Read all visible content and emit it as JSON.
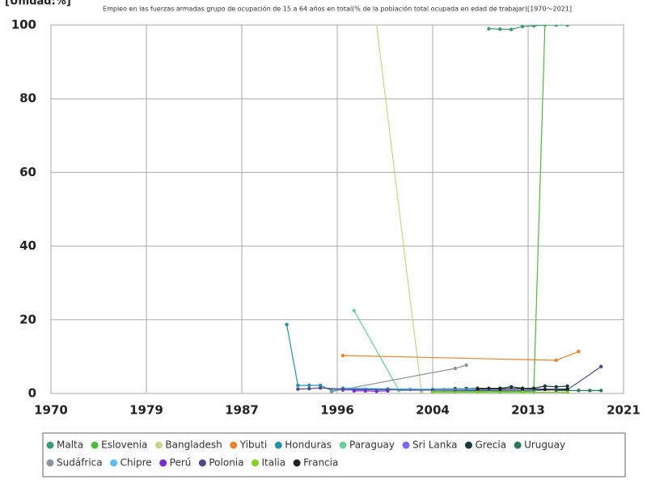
{
  "chart_data": {
    "type": "line",
    "title": "Empleo en las fuerzas armadas grupo de ocupación de 15 a 64 años en total(% de la población total ocupada en edad de trabajar)[1970～2021]",
    "unit_label": "[Unidad:%]",
    "xlim": [
      1970,
      2021
    ],
    "xticks": [
      1970,
      {
        "value": 1978.5,
        "label": "1979"
      },
      1987,
      {
        "value": 1995.5,
        "label": "1996"
      },
      2004,
      {
        "value": 2012.5,
        "label": "2013"
      },
      2021
    ],
    "ylim": [
      0,
      100
    ],
    "yticks": [
      0,
      20,
      40,
      60,
      80,
      100
    ],
    "grid": true,
    "series": [
      {
        "name": "Malta",
        "color": "#3a9a7a",
        "x": [
          2009,
          2010,
          2011,
          2012,
          2013,
          2014,
          2015,
          2016
        ],
        "values": [
          99,
          98.9,
          98.8,
          99.6,
          99.8,
          100,
          100,
          100
        ]
      },
      {
        "name": "Eslovenia",
        "color": "#4cbb3c",
        "x": [
          2004,
          2006,
          2008,
          2010,
          2012,
          2013,
          2014
        ],
        "values": [
          0.5,
          0.5,
          0.5,
          0.5,
          0.5,
          0.5,
          100
        ]
      },
      {
        "name": "Bangladesh",
        "color": "#c8d48a",
        "x": [
          1998,
          2003
        ],
        "values": [
          125,
          0.5
        ]
      },
      {
        "name": "Yibuti",
        "color": "#e8832a",
        "x": [
          1996,
          2015,
          2017
        ],
        "values": [
          10.3,
          9,
          11.4
        ]
      },
      {
        "name": "Honduras",
        "color": "#2a8fa8",
        "x": [
          1991,
          1992,
          1993,
          1994,
          1995,
          1996,
          1998,
          2000,
          2002,
          2004
        ],
        "values": [
          18.7,
          2.2,
          2.2,
          2.2,
          0.8,
          1.3,
          1.2,
          1.2,
          1.1,
          1.1
        ]
      },
      {
        "name": "Paraguay",
        "color": "#6ccf9a",
        "x": [
          1997,
          2001,
          2003,
          2005,
          2007,
          2009
        ],
        "values": [
          22.5,
          0.8,
          0.9,
          1.1,
          0.9,
          0.8
        ]
      },
      {
        "name": "Sri Lanka",
        "color": "#7b68ee",
        "x": [
          1996,
          1998,
          2000,
          2002,
          2004,
          2006,
          2008
        ],
        "values": [
          0.9,
          1,
          1,
          1.1,
          1,
          1.1,
          1
        ]
      },
      {
        "name": "Grecia",
        "color": "#17383a",
        "x": [
          2004,
          2006,
          2007,
          2008,
          2009,
          2010,
          2011,
          2012,
          2013,
          2014,
          2015,
          2016
        ],
        "values": [
          1.2,
          1.3,
          1.3,
          1.4,
          1.4,
          1.4,
          1.8,
          1.4,
          1.4,
          2,
          1.8,
          2
        ]
      },
      {
        "name": "Uruguay",
        "color": "#2a7a5a",
        "x": [
          2015,
          2016,
          2017,
          2018,
          2019
        ],
        "values": [
          0.8,
          0.8,
          0.8,
          0.8,
          0.8
        ]
      },
      {
        "name": "Sudáfrica",
        "color": "#8a94a0",
        "x": [
          1995,
          2006,
          2007
        ],
        "values": [
          0.5,
          6.8,
          7.7
        ]
      },
      {
        "name": "Chipre",
        "color": "#5bc0eb",
        "x": [
          1996,
          2000,
          2004,
          2008,
          2012,
          2016
        ],
        "values": [
          1.5,
          1.3,
          1.2,
          1.2,
          1.2,
          1.1
        ]
      },
      {
        "name": "Perú",
        "color": "#7a2ad0",
        "x": [
          1997,
          1998,
          1999,
          2000
        ],
        "values": [
          0.7,
          0.7,
          0.6,
          0.7
        ]
      },
      {
        "name": "Polonia",
        "color": "#4a4a8a",
        "x": [
          1992,
          1993,
          1994,
          1996,
          2000,
          2004,
          2008,
          2012,
          2016,
          2019
        ],
        "values": [
          1.2,
          1.3,
          1.5,
          1.2,
          1,
          0.9,
          0.8,
          0.8,
          1,
          7.3
        ]
      },
      {
        "name": "Italia",
        "color": "#7ed321",
        "x": [
          2004,
          2008,
          2012,
          2016
        ],
        "values": [
          0.3,
          0.3,
          0.3,
          0.3
        ]
      },
      {
        "name": "Francia",
        "color": "#222222",
        "x": [
          2008,
          2010,
          2012,
          2014,
          2016
        ],
        "values": [
          1.2,
          1.2,
          1.3,
          1.1,
          1.2
        ]
      }
    ]
  }
}
